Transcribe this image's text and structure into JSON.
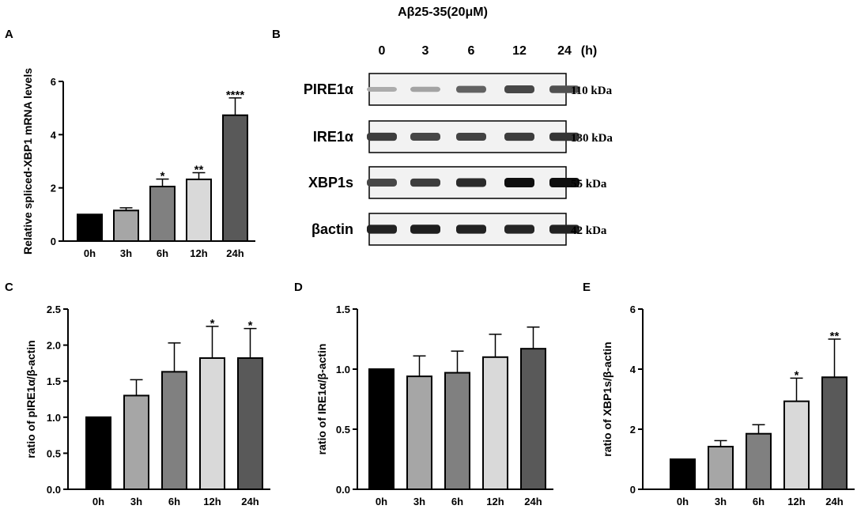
{
  "figure_title": "Aβ25-35(20μM)",
  "blot": {
    "panel_label": "B",
    "timepoints": [
      "0",
      "3",
      "6",
      "12",
      "24"
    ],
    "unit": "(h)",
    "rows": [
      {
        "protein": "PIRE1α",
        "kda": "110 kDa",
        "intensity": [
          0.15,
          0.2,
          0.55,
          0.7,
          0.65
        ]
      },
      {
        "protein": "IRE1α",
        "kda": "130 kDa",
        "intensity": [
          0.75,
          0.7,
          0.72,
          0.75,
          0.8
        ]
      },
      {
        "protein": "XBP1s",
        "kda": "55 kDa",
        "intensity": [
          0.7,
          0.75,
          0.85,
          1.0,
          1.0
        ]
      },
      {
        "protein": "βactin",
        "kda": "42 kDa",
        "intensity": [
          0.9,
          0.92,
          0.9,
          0.88,
          0.9
        ]
      }
    ]
  },
  "chart_data": [
    {
      "panel_label": "A",
      "type": "bar",
      "categories": [
        "0h",
        "3h",
        "6h",
        "12h",
        "24h"
      ],
      "values": [
        1.0,
        1.15,
        2.05,
        2.32,
        4.73
      ],
      "errors": [
        0,
        0.1,
        0.28,
        0.25,
        0.65
      ],
      "significance": [
        "",
        "",
        "*",
        "**",
        "****"
      ],
      "ylabel": "Relative spliced-XBP1 mRNA levels",
      "ylim": [
        0,
        6
      ],
      "yticks": [
        "0",
        "2",
        "4",
        "6"
      ],
      "colors": [
        "#000000",
        "#a6a6a6",
        "#808080",
        "#d9d9d9",
        "#595959"
      ]
    },
    {
      "panel_label": "C",
      "type": "bar",
      "categories": [
        "0h",
        "3h",
        "6h",
        "12h",
        "24h"
      ],
      "values": [
        1.0,
        1.3,
        1.63,
        1.82,
        1.82
      ],
      "errors": [
        0,
        0.22,
        0.4,
        0.44,
        0.41
      ],
      "significance": [
        "",
        "",
        "",
        "*",
        "*"
      ],
      "ylabel": "ratio of pIRE1α/β-actin",
      "ylim": [
        0,
        2.5
      ],
      "yticks": [
        "0.0",
        "0.5",
        "1.0",
        "1.5",
        "2.0",
        "2.5"
      ],
      "colors": [
        "#000000",
        "#a6a6a6",
        "#808080",
        "#d9d9d9",
        "#595959"
      ]
    },
    {
      "panel_label": "D",
      "type": "bar",
      "categories": [
        "0h",
        "3h",
        "6h",
        "12h",
        "24h"
      ],
      "values": [
        1.0,
        0.94,
        0.97,
        1.1,
        1.17
      ],
      "errors": [
        0,
        0.17,
        0.18,
        0.19,
        0.18
      ],
      "significance": [
        "",
        "",
        "",
        "",
        ""
      ],
      "ylabel": "ratio of IRE1α/β-actin",
      "ylim": [
        0,
        1.5
      ],
      "yticks": [
        "0.0",
        "0.5",
        "1.0",
        "1.5"
      ],
      "colors": [
        "#000000",
        "#a6a6a6",
        "#808080",
        "#d9d9d9",
        "#595959"
      ]
    },
    {
      "panel_label": "E",
      "type": "bar",
      "categories": [
        "0h",
        "3h",
        "6h",
        "12h",
        "24h"
      ],
      "values": [
        1.0,
        1.42,
        1.85,
        2.93,
        3.73
      ],
      "errors": [
        0,
        0.2,
        0.3,
        0.77,
        1.27
      ],
      "significance": [
        "",
        "",
        "",
        "*",
        "**"
      ],
      "ylabel": "ratio of XBP1s/β-actin",
      "ylim": [
        0,
        6
      ],
      "yticks": [
        "0",
        "2",
        "4",
        "6"
      ],
      "colors": [
        "#000000",
        "#a6a6a6",
        "#808080",
        "#d9d9d9",
        "#595959"
      ]
    }
  ]
}
